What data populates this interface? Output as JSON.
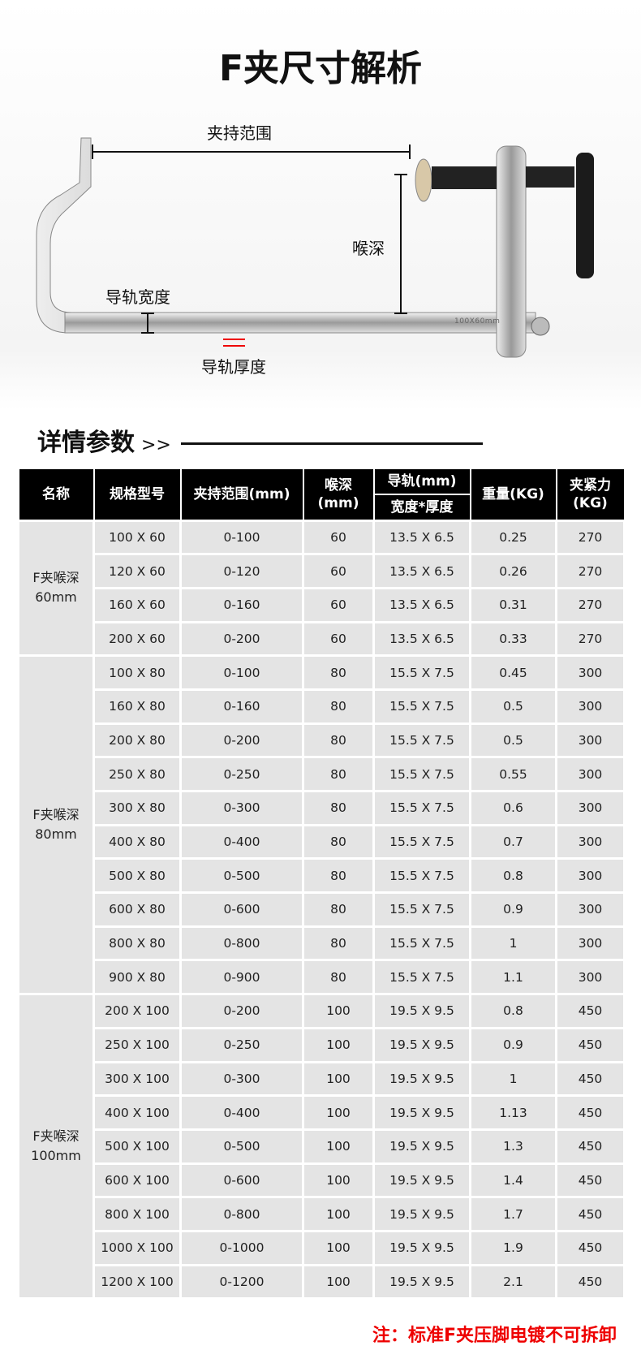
{
  "title": "F夹尺寸解析",
  "diagram": {
    "clamp_range": "夹持范围",
    "throat_depth": "喉深",
    "rail_width": "导轨宽度",
    "rail_thickness": "导轨厚度",
    "rail_marking": "100X60mm"
  },
  "section": {
    "title": "详情参数",
    "arrows": ">>"
  },
  "table": {
    "headers": {
      "name": "名称",
      "model": "规格型号",
      "range": "夹持范围(mm)",
      "depth": "喉深\n(mm)",
      "rail": "导轨(mm)",
      "rail_sub": "宽度*厚度",
      "weight": "重量(KG)",
      "force": "夹紧力\n(KG)"
    },
    "groups": [
      {
        "name": "F夹喉深\n60mm",
        "rows": [
          [
            "100 X 60",
            "0-100",
            "60",
            "13.5 X 6.5",
            "0.25",
            "270"
          ],
          [
            "120 X 60",
            "0-120",
            "60",
            "13.5 X 6.5",
            "0.26",
            "270"
          ],
          [
            "160 X 60",
            "0-160",
            "60",
            "13.5 X 6.5",
            "0.31",
            "270"
          ],
          [
            "200 X 60",
            "0-200",
            "60",
            "13.5 X 6.5",
            "0.33",
            "270"
          ]
        ]
      },
      {
        "name": "F夹喉深\n80mm",
        "rows": [
          [
            "100 X 80",
            "0-100",
            "80",
            "15.5 X 7.5",
            "0.45",
            "300"
          ],
          [
            "160 X 80",
            "0-160",
            "80",
            "15.5 X 7.5",
            "0.5",
            "300"
          ],
          [
            "200 X 80",
            "0-200",
            "80",
            "15.5 X 7.5",
            "0.5",
            "300"
          ],
          [
            "250 X 80",
            "0-250",
            "80",
            "15.5 X 7.5",
            "0.55",
            "300"
          ],
          [
            "300 X 80",
            "0-300",
            "80",
            "15.5 X 7.5",
            "0.6",
            "300"
          ],
          [
            "400 X 80",
            "0-400",
            "80",
            "15.5 X 7.5",
            "0.7",
            "300"
          ],
          [
            "500 X 80",
            "0-500",
            "80",
            "15.5 X 7.5",
            "0.8",
            "300"
          ],
          [
            "600 X 80",
            "0-600",
            "80",
            "15.5 X 7.5",
            "0.9",
            "300"
          ],
          [
            "800 X 80",
            "0-800",
            "80",
            "15.5 X 7.5",
            "1",
            "300"
          ],
          [
            "900 X 80",
            "0-900",
            "80",
            "15.5 X 7.5",
            "1.1",
            "300"
          ]
        ]
      },
      {
        "name": "F夹喉深\n100mm",
        "rows": [
          [
            "200 X 100",
            "0-200",
            "100",
            "19.5 X 9.5",
            "0.8",
            "450"
          ],
          [
            "250 X 100",
            "0-250",
            "100",
            "19.5 X 9.5",
            "0.9",
            "450"
          ],
          [
            "300 X 100",
            "0-300",
            "100",
            "19.5 X 9.5",
            "1",
            "450"
          ],
          [
            "400 X 100",
            "0-400",
            "100",
            "19.5 X 9.5",
            "1.13",
            "450"
          ],
          [
            "500 X 100",
            "0-500",
            "100",
            "19.5 X 9.5",
            "1.3",
            "450"
          ],
          [
            "600 X 100",
            "0-600",
            "100",
            "19.5 X 9.5",
            "1.4",
            "450"
          ],
          [
            "800 X 100",
            "0-800",
            "100",
            "19.5 X 9.5",
            "1.7",
            "450"
          ],
          [
            "1000 X 100",
            "0-1000",
            "100",
            "19.5 X 9.5",
            "1.9",
            "450"
          ],
          [
            "1200 X 100",
            "0-1200",
            "100",
            "19.5 X 9.5",
            "2.1",
            "450"
          ]
        ]
      }
    ]
  },
  "note": "注：标准F夹压脚电镀不可拆卸"
}
